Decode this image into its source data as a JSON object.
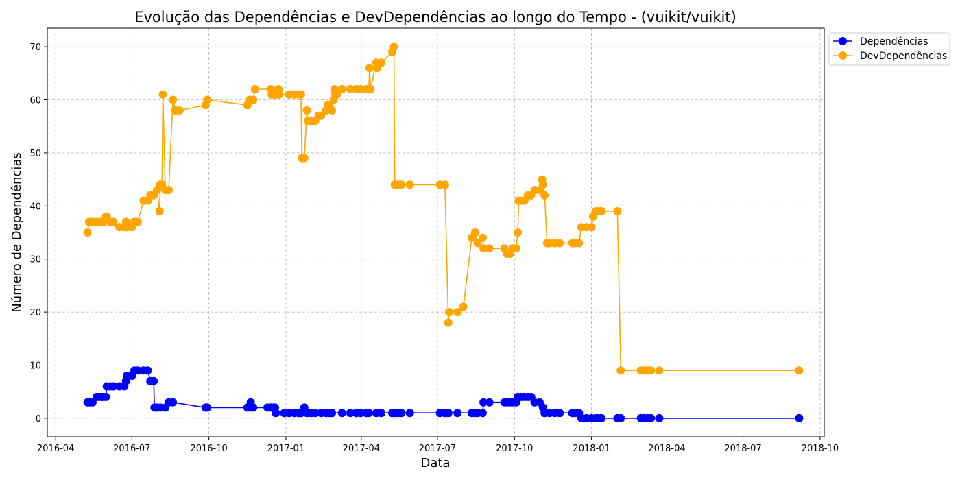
{
  "chart_data": {
    "type": "line",
    "title": "Evolução das Dependências e DevDependências ao longo do Tempo - (vuikit/vuikit)",
    "xlabel": "Data",
    "ylabel": "Número de Dependências",
    "x_ticks": [
      "2016-04",
      "2016-07",
      "2016-10",
      "2017-01",
      "2017-04",
      "2017-07",
      "2017-10",
      "2018-01",
      "2018-04",
      "2018-07",
      "2018-10"
    ],
    "y_ticks": [
      0,
      10,
      20,
      30,
      40,
      50,
      60,
      70
    ],
    "xlim": [
      "2016-03-22",
      "2018-10-06"
    ],
    "ylim": [
      -3.5,
      73.5
    ],
    "grid": true,
    "legend_position": "outside-top-right",
    "series": [
      {
        "name": "Dependências",
        "color": "#0000ff",
        "points": [
          [
            "2016-05-09",
            3
          ],
          [
            "2016-05-11",
            3
          ],
          [
            "2016-05-13",
            3
          ],
          [
            "2016-05-15",
            3
          ],
          [
            "2016-05-20",
            4
          ],
          [
            "2016-05-23",
            4
          ],
          [
            "2016-05-26",
            4
          ],
          [
            "2016-05-28",
            4
          ],
          [
            "2016-05-31",
            4
          ],
          [
            "2016-06-01",
            6
          ],
          [
            "2016-06-05",
            6
          ],
          [
            "2016-06-09",
            6
          ],
          [
            "2016-06-16",
            6
          ],
          [
            "2016-06-22",
            6
          ],
          [
            "2016-06-24",
            7
          ],
          [
            "2016-06-25",
            8
          ],
          [
            "2016-07-01",
            8
          ],
          [
            "2016-07-04",
            9
          ],
          [
            "2016-07-08",
            9
          ],
          [
            "2016-07-15",
            9
          ],
          [
            "2016-07-20",
            9
          ],
          [
            "2016-07-23",
            7
          ],
          [
            "2016-07-27",
            7
          ],
          [
            "2016-07-28",
            2
          ],
          [
            "2016-07-31",
            2
          ],
          [
            "2016-08-04",
            2
          ],
          [
            "2016-08-10",
            2
          ],
          [
            "2016-08-14",
            3
          ],
          [
            "2016-08-19",
            3
          ],
          [
            "2016-09-27",
            2
          ],
          [
            "2016-09-29",
            2
          ],
          [
            "2016-11-16",
            2
          ],
          [
            "2016-11-19",
            2
          ],
          [
            "2016-11-20",
            3
          ],
          [
            "2016-11-23",
            2
          ],
          [
            "2016-12-10",
            2
          ],
          [
            "2016-12-14",
            2
          ],
          [
            "2016-12-17",
            2
          ],
          [
            "2016-12-19",
            2
          ],
          [
            "2016-12-20",
            1
          ],
          [
            "2016-12-30",
            1
          ],
          [
            "2017-01-05",
            1
          ],
          [
            "2017-01-11",
            1
          ],
          [
            "2017-01-16",
            1
          ],
          [
            "2017-01-19",
            1
          ],
          [
            "2017-01-23",
            2
          ],
          [
            "2017-01-26",
            1
          ],
          [
            "2017-01-31",
            1
          ],
          [
            "2017-02-05",
            1
          ],
          [
            "2017-02-12",
            1
          ],
          [
            "2017-02-18",
            1
          ],
          [
            "2017-02-22",
            1
          ],
          [
            "2017-02-25",
            1
          ],
          [
            "2017-03-09",
            1
          ],
          [
            "2017-03-19",
            1
          ],
          [
            "2017-03-26",
            1
          ],
          [
            "2017-03-31",
            1
          ],
          [
            "2017-04-07",
            1
          ],
          [
            "2017-04-10",
            1
          ],
          [
            "2017-04-19",
            1
          ],
          [
            "2017-04-25",
            1
          ],
          [
            "2017-05-08",
            1
          ],
          [
            "2017-05-11",
            1
          ],
          [
            "2017-05-15",
            1
          ],
          [
            "2017-05-19",
            1
          ],
          [
            "2017-05-29",
            1
          ],
          [
            "2017-07-04",
            1
          ],
          [
            "2017-07-10",
            1
          ],
          [
            "2017-07-14",
            1
          ],
          [
            "2017-07-25",
            1
          ],
          [
            "2017-08-11",
            1
          ],
          [
            "2017-08-15",
            1
          ],
          [
            "2017-08-18",
            1
          ],
          [
            "2017-08-24",
            1
          ],
          [
            "2017-08-25",
            3
          ],
          [
            "2017-09-01",
            3
          ],
          [
            "2017-09-19",
            3
          ],
          [
            "2017-09-22",
            3
          ],
          [
            "2017-09-26",
            3
          ],
          [
            "2017-09-29",
            3
          ],
          [
            "2017-10-03",
            3
          ],
          [
            "2017-10-05",
            4
          ],
          [
            "2017-10-09",
            4
          ],
          [
            "2017-10-13",
            4
          ],
          [
            "2017-10-17",
            4
          ],
          [
            "2017-10-21",
            4
          ],
          [
            "2017-10-25",
            3
          ],
          [
            "2017-10-31",
            3
          ],
          [
            "2017-11-04",
            2
          ],
          [
            "2017-11-06",
            1
          ],
          [
            "2017-11-12",
            1
          ],
          [
            "2017-11-18",
            1
          ],
          [
            "2017-11-24",
            1
          ],
          [
            "2017-12-09",
            1
          ],
          [
            "2017-12-12",
            1
          ],
          [
            "2017-12-17",
            1
          ],
          [
            "2017-12-20",
            0
          ],
          [
            "2017-12-26",
            0
          ],
          [
            "2018-01-01",
            0
          ],
          [
            "2018-01-06",
            0
          ],
          [
            "2018-01-09",
            0
          ],
          [
            "2018-01-13",
            0
          ],
          [
            "2018-02-01",
            0
          ],
          [
            "2018-02-05",
            0
          ],
          [
            "2018-03-01",
            0
          ],
          [
            "2018-03-05",
            0
          ],
          [
            "2018-03-09",
            0
          ],
          [
            "2018-03-13",
            0
          ],
          [
            "2018-03-23",
            0
          ],
          [
            "2018-09-06",
            0
          ]
        ]
      },
      {
        "name": "DevDependências",
        "color": "#ffa500",
        "points": [
          [
            "2016-05-09",
            35
          ],
          [
            "2016-05-11",
            37
          ],
          [
            "2016-05-13",
            37
          ],
          [
            "2016-05-15",
            37
          ],
          [
            "2016-05-20",
            37
          ],
          [
            "2016-05-23",
            37
          ],
          [
            "2016-05-26",
            37
          ],
          [
            "2016-05-28",
            37
          ],
          [
            "2016-05-31",
            38
          ],
          [
            "2016-06-01",
            38
          ],
          [
            "2016-06-05",
            37
          ],
          [
            "2016-06-09",
            37
          ],
          [
            "2016-06-16",
            36
          ],
          [
            "2016-06-22",
            36
          ],
          [
            "2016-06-24",
            37
          ],
          [
            "2016-06-25",
            36
          ],
          [
            "2016-07-01",
            36
          ],
          [
            "2016-07-04",
            37
          ],
          [
            "2016-07-08",
            37
          ],
          [
            "2016-07-15",
            41
          ],
          [
            "2016-07-20",
            41
          ],
          [
            "2016-07-23",
            42
          ],
          [
            "2016-07-27",
            42
          ],
          [
            "2016-07-31",
            43
          ],
          [
            "2016-08-03",
            39
          ],
          [
            "2016-08-04",
            44
          ],
          [
            "2016-08-06",
            44
          ],
          [
            "2016-08-07",
            61
          ],
          [
            "2016-08-10",
            43
          ],
          [
            "2016-08-14",
            43
          ],
          [
            "2016-08-19",
            60
          ],
          [
            "2016-08-22",
            58
          ],
          [
            "2016-08-27",
            58
          ],
          [
            "2016-09-27",
            59
          ],
          [
            "2016-09-29",
            60
          ],
          [
            "2016-11-16",
            59
          ],
          [
            "2016-11-19",
            60
          ],
          [
            "2016-11-23",
            60
          ],
          [
            "2016-11-25",
            62
          ],
          [
            "2016-12-14",
            62
          ],
          [
            "2016-12-15",
            61
          ],
          [
            "2016-12-17",
            61
          ],
          [
            "2016-12-19",
            61
          ],
          [
            "2016-12-20",
            61
          ],
          [
            "2016-12-23",
            62
          ],
          [
            "2016-12-24",
            61
          ],
          [
            "2017-01-05",
            61
          ],
          [
            "2017-01-11",
            61
          ],
          [
            "2017-01-16",
            61
          ],
          [
            "2017-01-19",
            61
          ],
          [
            "2017-01-20",
            49
          ],
          [
            "2017-01-23",
            49
          ],
          [
            "2017-01-26",
            58
          ],
          [
            "2017-01-27",
            56
          ],
          [
            "2017-01-31",
            56
          ],
          [
            "2017-02-05",
            56
          ],
          [
            "2017-02-09",
            57
          ],
          [
            "2017-02-12",
            57
          ],
          [
            "2017-02-18",
            58
          ],
          [
            "2017-02-20",
            59
          ],
          [
            "2017-02-22",
            59
          ],
          [
            "2017-02-25",
            58
          ],
          [
            "2017-02-27",
            60
          ],
          [
            "2017-02-28",
            62
          ],
          [
            "2017-03-01",
            61
          ],
          [
            "2017-03-03",
            61
          ],
          [
            "2017-03-09",
            62
          ],
          [
            "2017-03-19",
            62
          ],
          [
            "2017-03-26",
            62
          ],
          [
            "2017-03-31",
            62
          ],
          [
            "2017-04-07",
            62
          ],
          [
            "2017-04-10",
            62
          ],
          [
            "2017-04-11",
            66
          ],
          [
            "2017-04-12",
            62
          ],
          [
            "2017-04-19",
            67
          ],
          [
            "2017-04-20",
            66
          ],
          [
            "2017-04-25",
            67
          ],
          [
            "2017-05-08",
            69
          ],
          [
            "2017-05-10",
            70
          ],
          [
            "2017-05-11",
            44
          ],
          [
            "2017-05-15",
            44
          ],
          [
            "2017-05-19",
            44
          ],
          [
            "2017-05-29",
            44
          ],
          [
            "2017-07-04",
            44
          ],
          [
            "2017-07-10",
            44
          ],
          [
            "2017-07-14",
            18
          ],
          [
            "2017-07-15",
            20
          ],
          [
            "2017-07-25",
            20
          ],
          [
            "2017-08-01",
            21
          ],
          [
            "2017-08-11",
            34
          ],
          [
            "2017-08-15",
            35
          ],
          [
            "2017-08-18",
            33
          ],
          [
            "2017-08-24",
            34
          ],
          [
            "2017-08-25",
            32
          ],
          [
            "2017-09-01",
            32
          ],
          [
            "2017-09-19",
            32
          ],
          [
            "2017-09-22",
            31
          ],
          [
            "2017-09-26",
            31
          ],
          [
            "2017-09-29",
            32
          ],
          [
            "2017-10-03",
            32
          ],
          [
            "2017-10-05",
            35
          ],
          [
            "2017-10-06",
            41
          ],
          [
            "2017-10-09",
            41
          ],
          [
            "2017-10-13",
            41
          ],
          [
            "2017-10-17",
            42
          ],
          [
            "2017-10-21",
            42
          ],
          [
            "2017-10-25",
            43
          ],
          [
            "2017-10-31",
            43
          ],
          [
            "2017-11-03",
            45
          ],
          [
            "2017-11-04",
            44
          ],
          [
            "2017-11-06",
            42
          ],
          [
            "2017-11-09",
            33
          ],
          [
            "2017-11-12",
            33
          ],
          [
            "2017-11-18",
            33
          ],
          [
            "2017-11-24",
            33
          ],
          [
            "2017-12-09",
            33
          ],
          [
            "2017-12-12",
            33
          ],
          [
            "2017-12-17",
            33
          ],
          [
            "2017-12-20",
            36
          ],
          [
            "2017-12-26",
            36
          ],
          [
            "2018-01-01",
            36
          ],
          [
            "2018-01-03",
            38
          ],
          [
            "2018-01-06",
            39
          ],
          [
            "2018-01-09",
            39
          ],
          [
            "2018-01-13",
            39
          ],
          [
            "2018-02-01",
            39
          ],
          [
            "2018-02-05",
            9
          ],
          [
            "2018-03-01",
            9
          ],
          [
            "2018-03-05",
            9
          ],
          [
            "2018-03-09",
            9
          ],
          [
            "2018-03-13",
            9
          ],
          [
            "2018-03-23",
            9
          ],
          [
            "2018-09-06",
            9
          ]
        ]
      }
    ]
  }
}
